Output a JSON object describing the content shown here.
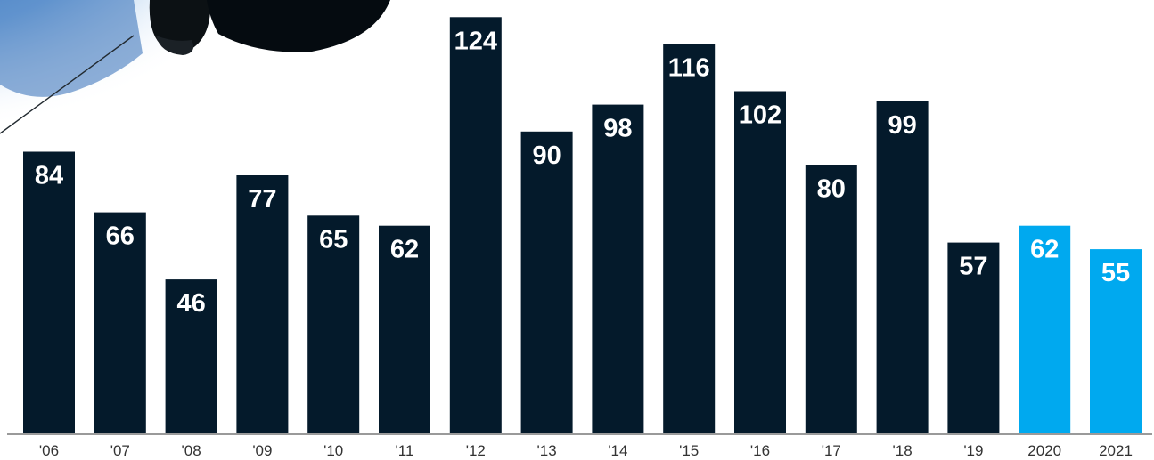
{
  "chart_data": {
    "type": "bar",
    "title": "",
    "xlabel": "",
    "ylabel": "",
    "categories": [
      "'06",
      "'07",
      "'08",
      "'09",
      "'10",
      "'11",
      "'12",
      "'13",
      "'14",
      "'15",
      "'16",
      "'17",
      "'18",
      "'19",
      "2020",
      "2021"
    ],
    "values": [
      84,
      66,
      46,
      77,
      65,
      62,
      124,
      90,
      98,
      116,
      102,
      80,
      99,
      57,
      62,
      55
    ],
    "ylim": [
      0,
      127
    ],
    "grid": false,
    "legend": "none",
    "data_labels": true,
    "colors": {
      "default_bar": "#041a2b",
      "highlight_bar": "#00a9ef",
      "highlight_categories": [
        "2020",
        "2021"
      ],
      "axis": "#9a9a9a",
      "value_label": "#ffffff",
      "tick_label": "#333333"
    }
  },
  "decoration": {
    "image": "golfer-silhouette-photo"
  }
}
